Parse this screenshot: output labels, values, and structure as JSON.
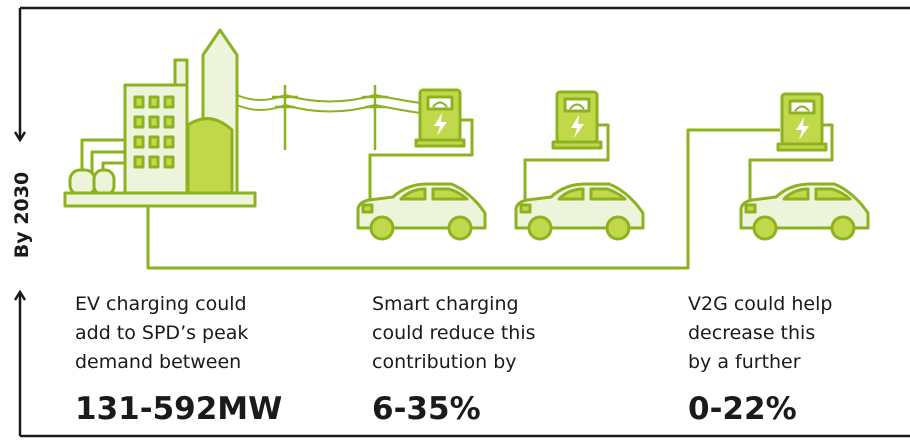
{
  "side_label": "By 2030",
  "panels": [
    {
      "lines": [
        "EV charging could",
        "add to SPD’s peak",
        "demand between"
      ],
      "figure": "131-592MW"
    },
    {
      "lines": [
        "Smart charging",
        "could reduce this",
        "contribution by"
      ],
      "figure": "6-35%"
    },
    {
      "lines": [
        "V2G could help",
        "decrease this",
        "by a further"
      ],
      "figure": "0-22%"
    }
  ]
}
